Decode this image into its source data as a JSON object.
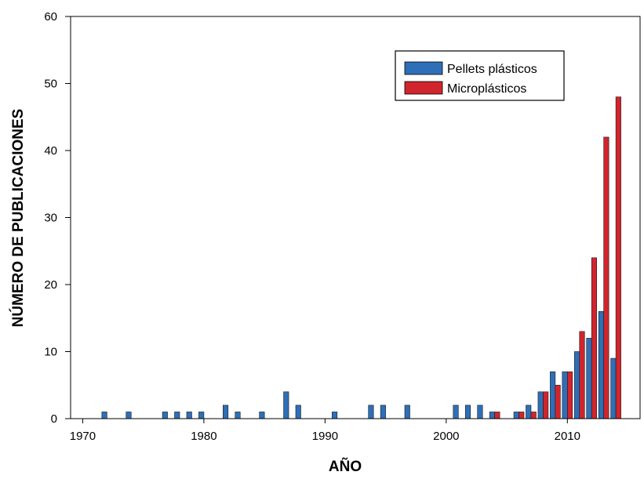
{
  "chart_data": {
    "type": "bar",
    "xlabel": "AÑO",
    "ylabel": "NÚMERO DE PUBLICACIONES",
    "xlim": [
      1969,
      2016
    ],
    "ylim": [
      0,
      60
    ],
    "xticks": [
      1970,
      1980,
      1990,
      2000,
      2010
    ],
    "yticks": [
      0,
      10,
      20,
      30,
      40,
      50,
      60
    ],
    "legend_position": "top-right",
    "grid": false,
    "series": [
      {
        "name": "Pellets plásticos",
        "color": "#2e6fb7",
        "points": [
          {
            "year": 1972,
            "value": 1
          },
          {
            "year": 1974,
            "value": 1
          },
          {
            "year": 1977,
            "value": 1
          },
          {
            "year": 1978,
            "value": 1
          },
          {
            "year": 1979,
            "value": 1
          },
          {
            "year": 1980,
            "value": 1
          },
          {
            "year": 1982,
            "value": 2
          },
          {
            "year": 1983,
            "value": 1
          },
          {
            "year": 1985,
            "value": 1
          },
          {
            "year": 1987,
            "value": 4
          },
          {
            "year": 1988,
            "value": 2
          },
          {
            "year": 1991,
            "value": 1
          },
          {
            "year": 1994,
            "value": 2
          },
          {
            "year": 1995,
            "value": 2
          },
          {
            "year": 1997,
            "value": 2
          },
          {
            "year": 2001,
            "value": 2
          },
          {
            "year": 2002,
            "value": 2
          },
          {
            "year": 2003,
            "value": 2
          },
          {
            "year": 2004,
            "value": 1
          },
          {
            "year": 2006,
            "value": 1
          },
          {
            "year": 2007,
            "value": 2
          },
          {
            "year": 2008,
            "value": 4
          },
          {
            "year": 2009,
            "value": 7
          },
          {
            "year": 2010,
            "value": 7
          },
          {
            "year": 2011,
            "value": 10
          },
          {
            "year": 2012,
            "value": 12
          },
          {
            "year": 2013,
            "value": 16
          },
          {
            "year": 2014,
            "value": 9
          }
        ]
      },
      {
        "name": "Microplásticos",
        "color": "#d0252d",
        "points": [
          {
            "year": 2004,
            "value": 1
          },
          {
            "year": 2006,
            "value": 1
          },
          {
            "year": 2007,
            "value": 1
          },
          {
            "year": 2008,
            "value": 4
          },
          {
            "year": 2009,
            "value": 5
          },
          {
            "year": 2010,
            "value": 7
          },
          {
            "year": 2011,
            "value": 13
          },
          {
            "year": 2012,
            "value": 24
          },
          {
            "year": 2013,
            "value": 42
          },
          {
            "year": 2014,
            "value": 48
          }
        ]
      }
    ]
  }
}
